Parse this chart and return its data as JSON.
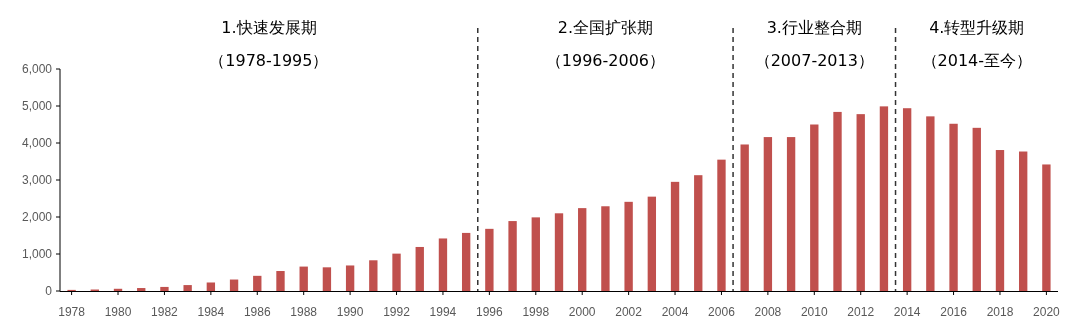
{
  "chart_data": {
    "type": "bar",
    "x": [
      1978,
      1979,
      1980,
      1981,
      1982,
      1983,
      1984,
      1985,
      1986,
      1987,
      1988,
      1989,
      1990,
      1991,
      1992,
      1993,
      1994,
      1995,
      1996,
      1997,
      1998,
      1999,
      2000,
      2001,
      2002,
      2003,
      2004,
      2005,
      2006,
      2007,
      2008,
      2009,
      2010,
      2011,
      2012,
      2013,
      2014,
      2015,
      2016,
      2017,
      2018,
      2019,
      2020
    ],
    "values": [
      30,
      40,
      60,
      80,
      110,
      160,
      230,
      310,
      410,
      540,
      660,
      640,
      690,
      830,
      1010,
      1190,
      1420,
      1570,
      1680,
      1890,
      1990,
      2100,
      2240,
      2290,
      2410,
      2550,
      2950,
      3130,
      3550,
      3960,
      4160,
      4160,
      4500,
      4840,
      4780,
      4990,
      4940,
      4720,
      4520,
      4410,
      3810,
      3770,
      3420
    ],
    "color": "#c0504d",
    "xlim": [
      1977.5,
      2020.5
    ],
    "xticks": [
      1978,
      1980,
      1982,
      1984,
      1986,
      1988,
      1990,
      1992,
      1994,
      1996,
      1998,
      2000,
      2002,
      2004,
      2006,
      2008,
      2010,
      2012,
      2014,
      2016,
      2018,
      2020
    ],
    "ylim": [
      0,
      6000
    ],
    "yticks": [
      {
        "value": 0,
        "label": "0"
      },
      {
        "value": 1000,
        "label": "1,000"
      },
      {
        "value": 2000,
        "label": "2,000"
      },
      {
        "value": 3000,
        "label": "3,000"
      },
      {
        "value": 4000,
        "label": "4,000"
      },
      {
        "value": 5000,
        "label": "5,000"
      },
      {
        "value": 6000,
        "label": "6,000"
      }
    ],
    "ref_lines": [
      {
        "axis": "x",
        "value": 1995.5,
        "color": "#333333",
        "line_style": "dashed"
      },
      {
        "axis": "x",
        "value": 2006.5,
        "color": "#333333",
        "line_style": "dashed"
      },
      {
        "axis": "x",
        "value": 2013.5,
        "color": "#333333",
        "line_style": "dashed"
      }
    ],
    "annotations": [
      "1.快速发展期",
      "（1978-1995）",
      "2.全国扩张期",
      "（1996-2006）",
      "3.行业整合期",
      "（2007-2013）",
      "4.转型升级期",
      "（2014-至今）"
    ],
    "grid": false
  }
}
